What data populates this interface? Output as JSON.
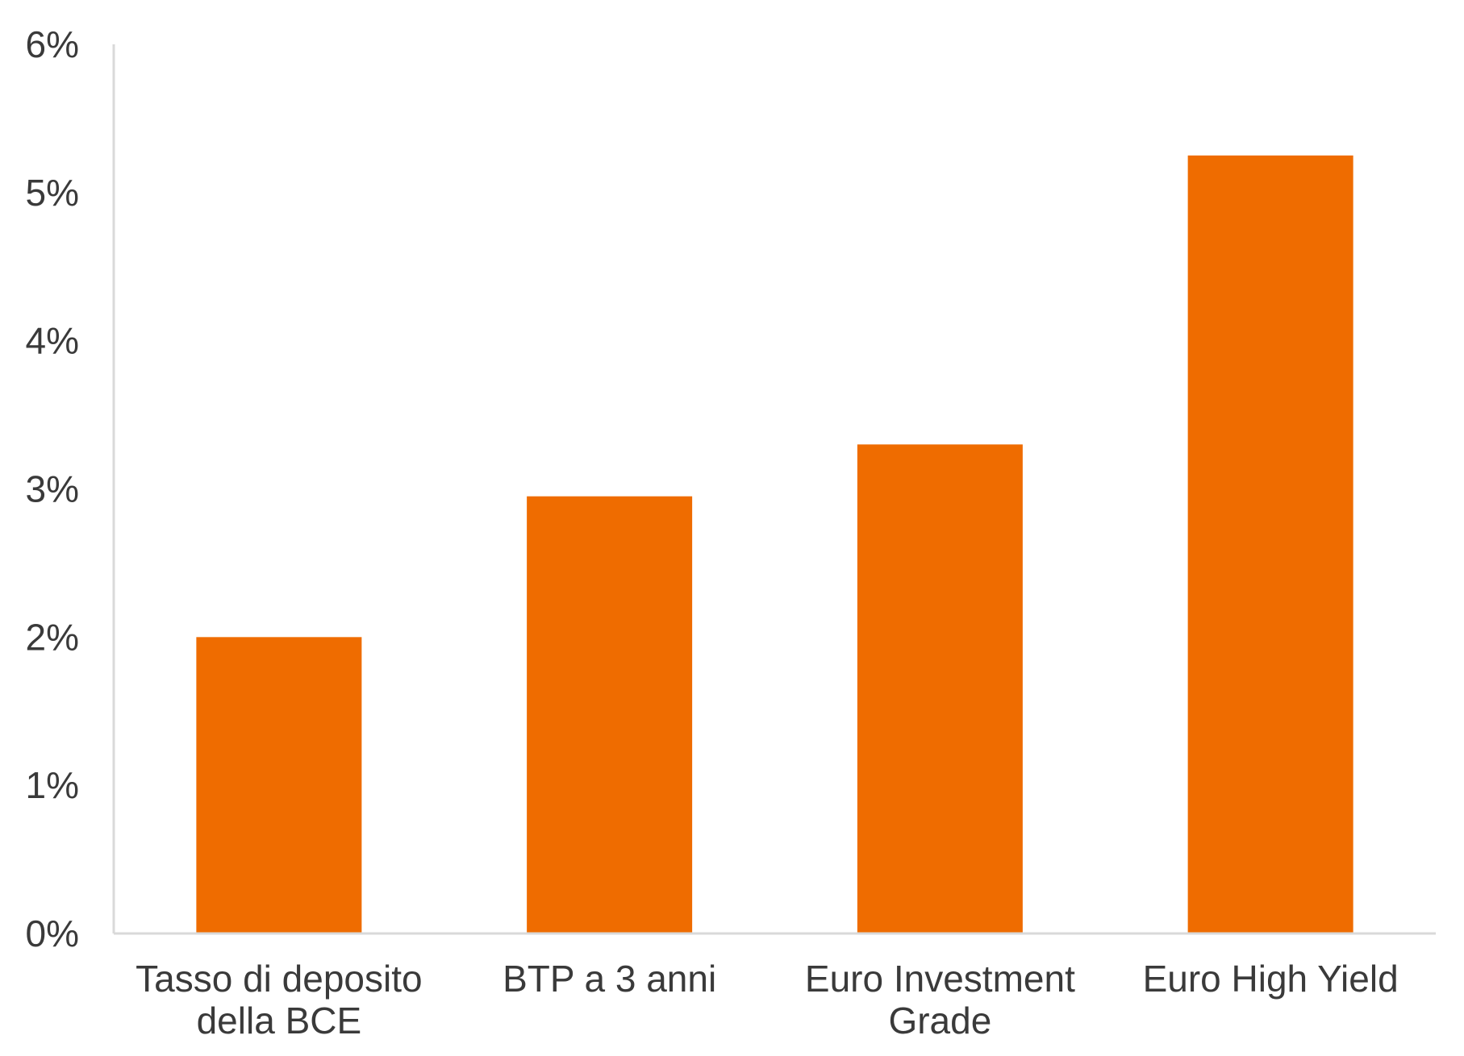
{
  "chart_data": {
    "type": "bar",
    "categories": [
      [
        "Tasso di deposito",
        "della BCE"
      ],
      [
        "BTP a 3 anni"
      ],
      [
        "Euro Investment",
        "Grade"
      ],
      [
        "Euro High Yield"
      ]
    ],
    "values": [
      2.0,
      2.95,
      3.3,
      5.25
    ],
    "ylim": [
      0,
      6
    ],
    "yticks": [
      0,
      1,
      2,
      3,
      4,
      5,
      6
    ],
    "ytick_labels": [
      "0%",
      "1%",
      "2%",
      "3%",
      "4%",
      "5%",
      "6%"
    ],
    "title": "",
    "xlabel": "",
    "ylabel": "",
    "grid": false,
    "colors": {
      "bar": "#ef6c00",
      "axis": "#d9d9d9",
      "text": "#3a3a3a"
    }
  }
}
